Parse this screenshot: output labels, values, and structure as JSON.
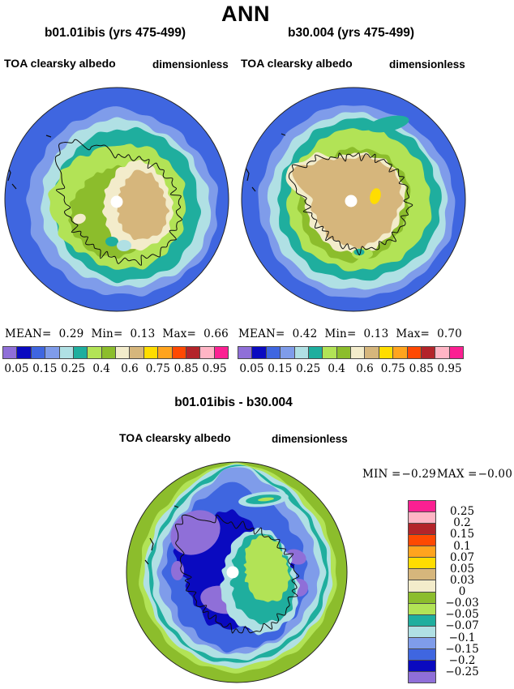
{
  "title": "ANN",
  "palette": {
    "purple": "#8f6fd8",
    "navy": "#0a0ac0",
    "royal": "#3f66e0",
    "cornflower": "#7f9cea",
    "palecyan": "#b0e0e4",
    "teal": "#1fae9e",
    "lightgreen": "#b2e356",
    "olive": "#8cbd2c",
    "cream": "#f3eccb",
    "tan": "#d6b67c",
    "yellow": "#ffdd00",
    "orange": "#ffa41e",
    "red": "#fe4902",
    "darkred": "#b3242a",
    "pink": "#ffb5c5",
    "magenta": "#fb2092",
    "coastline": "#0d0d0d",
    "circle_edge": "#222222",
    "pole_hole": "#ffffff"
  },
  "panels": {
    "left": {
      "title": "b01.01ibis (yrs 475-499)",
      "field": "TOA clearsky albedo",
      "units": "dimensionless",
      "stats": {
        "mean_label": "MEAN=",
        "mean": "0.29",
        "min_label": "Min=",
        "min": "0.13",
        "max_label": "Max=",
        "max": "0.66"
      }
    },
    "right": {
      "title": "b30.004 (yrs 475-499)",
      "field": "TOA clearsky albedo",
      "units": "dimensionless",
      "stats": {
        "mean_label": "MEAN=",
        "mean": "0.42",
        "min_label": "Min=",
        "min": "0.13",
        "max_label": "Max=",
        "max": "0.70"
      }
    },
    "diff": {
      "title": "b01.01ibis - b30.004",
      "field": "TOA clearsky albedo",
      "units": "dimensionless",
      "stats": {
        "min_label": "MIN =",
        "min": "−0.29",
        "max_label": "MAX =",
        "max": "−0.00"
      }
    }
  },
  "albedo_colorbar": {
    "colors": [
      "#8f6fd8",
      "#0a0ac0",
      "#3f66e0",
      "#7f9cea",
      "#b0e0e4",
      "#1fae9e",
      "#b2e356",
      "#8cbd2c",
      "#f3eccb",
      "#d6b67c",
      "#ffdd00",
      "#ffa41e",
      "#fe4902",
      "#b3242a",
      "#ffb5c5",
      "#fb2092"
    ],
    "tick_labels": [
      "0.05",
      "0.15",
      "0.25",
      "0.4",
      "0.6",
      "0.75",
      "0.85",
      "0.95"
    ]
  },
  "diff_colorbar": {
    "colors": [
      "#fb2092",
      "#ffb5c5",
      "#b3242a",
      "#fe4902",
      "#ffa41e",
      "#ffdd00",
      "#d6b67c",
      "#f3eccb",
      "#8cbd2c",
      "#b2e356",
      "#1fae9e",
      "#b0e0e4",
      "#7f9cea",
      "#3f66e0",
      "#0a0ac0",
      "#8f6fd8"
    ],
    "tick_labels": [
      "0.25",
      "0.2",
      "0.15",
      "0.1",
      "0.07",
      "0.05",
      "0.03",
      "0",
      "−0.03",
      "−0.05",
      "−0.07",
      "−0.1",
      "−0.15",
      "−0.2",
      "−0.25"
    ]
  },
  "chart_data": [
    {
      "type": "heatmap",
      "subtype": "filled-contour south polar stereographic map",
      "title": "b01.01ibis (yrs 475-499)",
      "season": "ANN",
      "variable": "TOA clearsky albedo",
      "units": "dimensionless",
      "stats": {
        "mean": 0.29,
        "min": 0.13,
        "max": 0.66
      },
      "contour_levels": [
        0.05,
        0.1,
        0.15,
        0.2,
        0.25,
        0.3,
        0.4,
        0.5,
        0.6,
        0.7,
        0.75,
        0.8,
        0.85,
        0.9,
        0.95
      ],
      "labeled_levels": [
        0.05,
        0.15,
        0.25,
        0.4,
        0.6,
        0.75,
        0.85,
        0.95
      ],
      "palette": [
        "#8f6fd8",
        "#0a0ac0",
        "#3f66e0",
        "#7f9cea",
        "#b0e0e4",
        "#1fae9e",
        "#b2e356",
        "#8cbd2c",
        "#f3eccb",
        "#d6b67c",
        "#ffdd00",
        "#ffa41e",
        "#fe4902",
        "#b3242a",
        "#ffb5c5",
        "#fb2092"
      ],
      "legend_position": "below",
      "description": "Ocean ~0.1-0.15 (royal blue); rings of 0.15-0.3 (cornflower, pale cyan, teal) around sea ice; 0.3-0.5 greens over coastal Antarctica; interior ice sheet 0.5-0.7 (cream/tan); white polar hole at pole; black Antarctic coastline"
    },
    {
      "type": "heatmap",
      "subtype": "filled-contour south polar stereographic map",
      "title": "b30.004 (yrs 475-499)",
      "season": "ANN",
      "variable": "TOA clearsky albedo",
      "units": "dimensionless",
      "stats": {
        "mean": 0.42,
        "min": 0.13,
        "max": 0.7
      },
      "contour_levels": [
        0.05,
        0.1,
        0.15,
        0.2,
        0.25,
        0.3,
        0.4,
        0.5,
        0.6,
        0.7,
        0.75,
        0.8,
        0.85,
        0.9,
        0.95
      ],
      "labeled_levels": [
        0.05,
        0.15,
        0.25,
        0.4,
        0.6,
        0.75,
        0.85,
        0.95
      ],
      "palette": [
        "#8f6fd8",
        "#0a0ac0",
        "#3f66e0",
        "#7f9cea",
        "#b0e0e4",
        "#1fae9e",
        "#b2e356",
        "#8cbd2c",
        "#f3eccb",
        "#d6b67c",
        "#ffdd00",
        "#ffa41e",
        "#fe4902",
        "#b3242a",
        "#ffb5c5",
        "#fb2092"
      ],
      "legend_position": "below",
      "description": "Tan continent (0.6-0.7) covering nearly all of Antarctica with small yellow 0.7 spot near pole; cream rim; broad green/teal/blue sea-ice rings; royal blue ocean"
    },
    {
      "type": "heatmap",
      "subtype": "filled-contour south polar stereographic difference map",
      "title": "b01.01ibis - b30.004",
      "season": "ANN",
      "variable": "TOA clearsky albedo",
      "units": "dimensionless",
      "stats": {
        "min": -0.29,
        "max": -0.0
      },
      "contour_levels": [
        -0.25,
        -0.2,
        -0.15,
        -0.1,
        -0.07,
        -0.05,
        -0.03,
        0,
        0.03,
        0.05,
        0.07,
        0.1,
        0.15,
        0.2,
        0.25
      ],
      "palette_top_to_bottom": [
        "#fb2092",
        "#ffb5c5",
        "#b3242a",
        "#fe4902",
        "#ffa41e",
        "#ffdd00",
        "#d6b67c",
        "#f3eccb",
        "#8cbd2c",
        "#b2e356",
        "#1fae9e",
        "#b0e0e4",
        "#7f9cea",
        "#3f66e0",
        "#0a0ac0",
        "#8f6fd8"
      ],
      "legend_position": "right",
      "description": "Differences all negative: near zero (olive green) over open ocean ring; -0.1 to -0.2 (blues) over sea-ice zone and coast; below -0.25 (purple) patches west and south of pole; small region near -0.03 (green/teal core) east of pole"
    }
  ]
}
